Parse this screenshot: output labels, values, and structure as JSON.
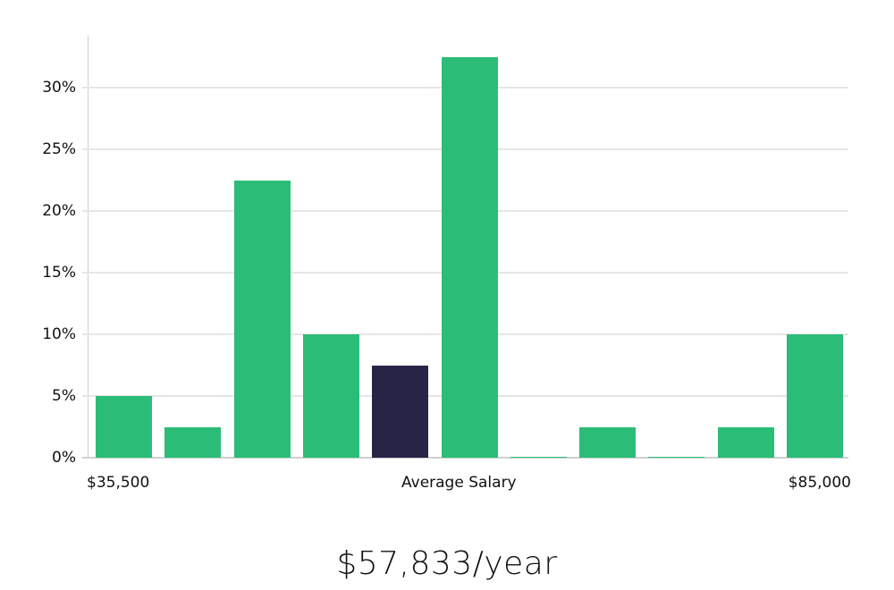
{
  "chart_data": {
    "type": "bar",
    "title": "",
    "xlabel": "Average Salary",
    "ylabel": "",
    "x_range_labels": {
      "min": "$35,500",
      "max": "$85,000"
    },
    "categories": [
      "bin1",
      "bin2",
      "bin3",
      "bin4",
      "bin5",
      "bin6",
      "bin7",
      "bin8",
      "bin9",
      "bin10",
      "bin11"
    ],
    "values": [
      5,
      2.5,
      22.5,
      10,
      7.5,
      32.5,
      0,
      2.5,
      0,
      2.5,
      10
    ],
    "highlight_index": 4,
    "yticks": [
      "0%",
      "5%",
      "10%",
      "15%",
      "20%",
      "25%",
      "30%"
    ],
    "ylim": [
      0,
      34
    ],
    "grid": true,
    "colors": {
      "bar": "#2bbd77",
      "highlight": "#272545",
      "grid": "#e6e6e6"
    }
  },
  "labels": {
    "x_min": "$35,500",
    "x_center": "Average Salary",
    "x_max": "$85,000",
    "summary": "$57,833/year"
  }
}
